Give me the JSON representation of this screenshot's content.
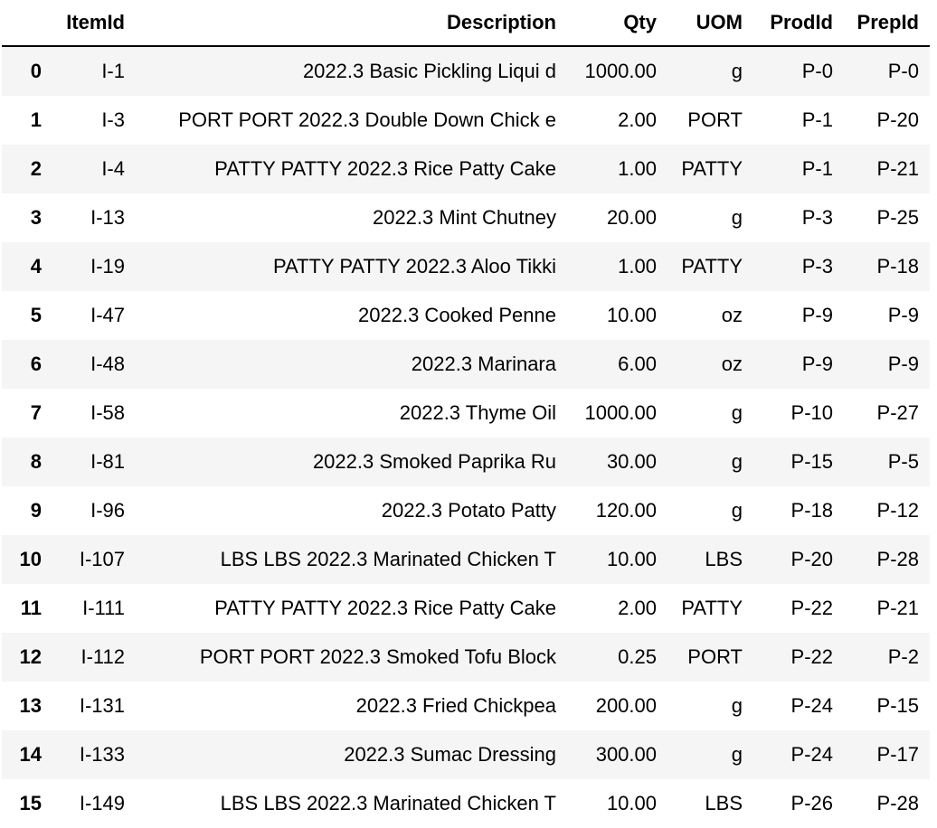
{
  "table": {
    "columns": [
      "",
      "ItemId",
      "Description",
      "Qty",
      "UOM",
      "ProdId",
      "PrepId"
    ],
    "rows": [
      {
        "index": "0",
        "cells": [
          "I-1",
          "2022.3 Basic Pickling Liqui d",
          "1000.00",
          "g",
          "P-0",
          "P-0"
        ]
      },
      {
        "index": "1",
        "cells": [
          "I-3",
          "PORT PORT 2022.3 Double Down Chick e",
          "2.00",
          "PORT",
          "P-1",
          "P-20"
        ]
      },
      {
        "index": "2",
        "cells": [
          "I-4",
          "PATTY PATTY 2022.3 Rice Patty Cake",
          "1.00",
          "PATTY",
          "P-1",
          "P-21"
        ]
      },
      {
        "index": "3",
        "cells": [
          "I-13",
          "2022.3 Mint Chutney",
          "20.00",
          "g",
          "P-3",
          "P-25"
        ]
      },
      {
        "index": "4",
        "cells": [
          "I-19",
          "PATTY PATTY 2022.3 Aloo Tikki",
          "1.00",
          "PATTY",
          "P-3",
          "P-18"
        ]
      },
      {
        "index": "5",
        "cells": [
          "I-47",
          "2022.3 Cooked Penne",
          "10.00",
          "oz",
          "P-9",
          "P-9"
        ]
      },
      {
        "index": "6",
        "cells": [
          "I-48",
          "2022.3 Marinara",
          "6.00",
          "oz",
          "P-9",
          "P-9"
        ]
      },
      {
        "index": "7",
        "cells": [
          "I-58",
          "2022.3 Thyme Oil",
          "1000.00",
          "g",
          "P-10",
          "P-27"
        ]
      },
      {
        "index": "8",
        "cells": [
          "I-81",
          "2022.3 Smoked Paprika Ru",
          "30.00",
          "g",
          "P-15",
          "P-5"
        ]
      },
      {
        "index": "9",
        "cells": [
          "I-96",
          "2022.3 Potato Patty",
          "120.00",
          "g",
          "P-18",
          "P-12"
        ]
      },
      {
        "index": "10",
        "cells": [
          "I-107",
          "LBS LBS 2022.3 Marinated Chicken T",
          "10.00",
          "LBS",
          "P-20",
          "P-28"
        ]
      },
      {
        "index": "11",
        "cells": [
          "I-111",
          "PATTY PATTY 2022.3 Rice Patty Cake",
          "2.00",
          "PATTY",
          "P-22",
          "P-21"
        ]
      },
      {
        "index": "12",
        "cells": [
          "I-112",
          "PORT PORT 2022.3 Smoked Tofu Block",
          "0.25",
          "PORT",
          "P-22",
          "P-2"
        ]
      },
      {
        "index": "13",
        "cells": [
          "I-131",
          "2022.3 Fried Chickpea",
          "200.00",
          "g",
          "P-24",
          "P-15"
        ]
      },
      {
        "index": "14",
        "cells": [
          "I-133",
          "2022.3 Sumac Dressing",
          "300.00",
          "g",
          "P-24",
          "P-17"
        ]
      },
      {
        "index": "15",
        "cells": [
          "I-149",
          "LBS LBS 2022.3 Marinated Chicken T",
          "10.00",
          "LBS",
          "P-26",
          "P-28"
        ]
      }
    ]
  },
  "colors": {
    "stripe": "#f5f5f5",
    "background": "#ffffff",
    "text": "#000000",
    "header_rule": "#000000"
  }
}
